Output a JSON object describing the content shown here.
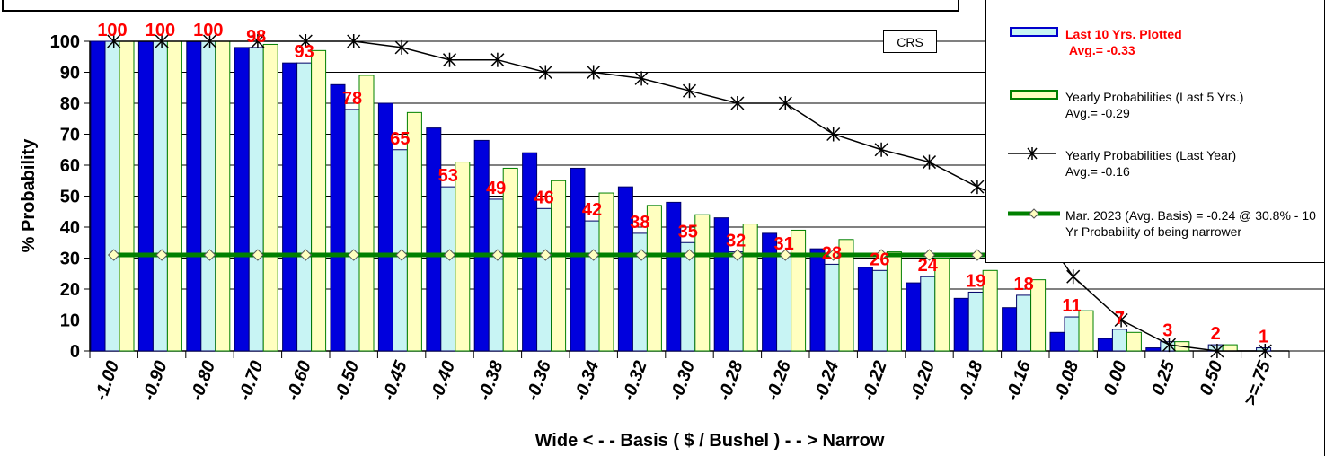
{
  "chart_data": {
    "type": "bar",
    "categories": [
      "-1.00",
      "-0.90",
      "-0.80",
      "-0.70",
      "-0.60",
      "-0.50",
      "-0.45",
      "-0.40",
      "-0.38",
      "-0.36",
      "-0.34",
      "-0.32",
      "-0.30",
      "-0.28",
      "-0.26",
      "-0.24",
      "-0.22",
      "-0.20",
      "-0.18",
      "-0.16",
      "-0.08",
      "0.00",
      "0.25",
      "0.50",
      ">=.75"
    ],
    "series": [
      {
        "name": "Last 10 Yrs. Plotted",
        "subtitle": "Avg.= -0.33",
        "kind": "bar",
        "color": "#0000dd",
        "values": [
          100,
          100,
          100,
          98,
          93,
          86,
          80,
          72,
          68,
          64,
          59,
          53,
          48,
          43,
          38,
          33,
          27,
          22,
          17,
          14,
          6,
          4,
          1,
          0,
          0
        ]
      },
      {
        "name": "Last 10 Yrs. Plotted",
        "kind": "bar",
        "color": "#c8f4f4",
        "values": [
          100,
          100,
          100,
          98,
          93,
          78,
          65,
          53,
          49,
          46,
          42,
          38,
          35,
          32,
          31,
          28,
          26,
          24,
          19,
          18,
          11,
          7,
          3,
          2,
          1
        ]
      },
      {
        "name": "Yearly Probabilities (Last 5 Yrs.)",
        "subtitle": "Avg.= -0.29",
        "kind": "bar",
        "color": "#ffffc0",
        "values": [
          100,
          100,
          100,
          99,
          97,
          89,
          77,
          61,
          59,
          55,
          51,
          47,
          44,
          41,
          39,
          36,
          32,
          30,
          26,
          23,
          13,
          6,
          3,
          2,
          0
        ]
      },
      {
        "name": "Yearly Probabilities (Last Year)",
        "subtitle": "Avg.= -0.16",
        "kind": "line",
        "color": "#000000",
        "values": [
          100,
          100,
          100,
          100,
          100,
          100,
          98,
          94,
          94,
          90,
          90,
          88,
          84,
          80,
          80,
          70,
          65,
          61,
          53,
          46,
          24,
          10,
          2,
          0,
          0
        ]
      },
      {
        "name": "Mar. 2023 (Avg. Basis) = -0.24 @ 30.8% - 10 Yr Probability of being narrower",
        "kind": "line",
        "color": "#008000",
        "values": [
          31,
          31,
          31,
          31,
          31,
          31,
          31,
          31,
          31,
          31,
          31,
          31,
          31,
          31,
          31,
          31,
          31,
          31,
          31,
          31,
          31,
          31,
          31,
          31,
          31
        ]
      }
    ],
    "data_labels": [
      "100",
      "100",
      "100",
      "98",
      "93",
      "78",
      "65",
      "53",
      "49",
      "46",
      "42",
      "38",
      "35",
      "32",
      "31",
      "28",
      "26",
      "24",
      "19",
      "18",
      "11",
      "7",
      "3",
      "2",
      "1"
    ],
    "xlabel": "Wide < - - Basis ( $ / Bushel ) - - > Narrow",
    "ylabel": "% Probability",
    "ylim": [
      0,
      100
    ],
    "yticks": [
      "0",
      "10",
      "20",
      "30",
      "40",
      "50",
      "60",
      "70",
      "80",
      "90",
      "100"
    ],
    "grid": true,
    "legend_position": "top-right"
  },
  "crs_label": "CRS"
}
